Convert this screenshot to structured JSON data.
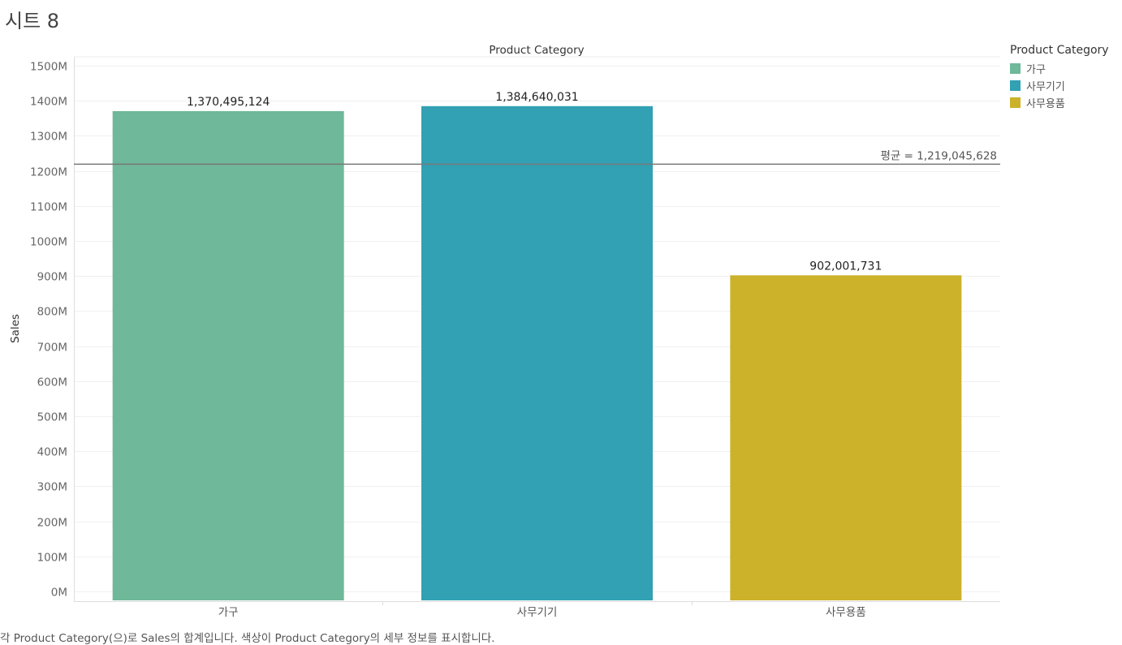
{
  "sheet": {
    "title": "시트 8"
  },
  "caption": "각 Product Category(으)로 Sales의 합계입니다.  색상이 Product Category의 세부 정보를 표시합니다.",
  "legend": {
    "title": "Product Category",
    "items": [
      {
        "label": "가구",
        "color": "#6fb899"
      },
      {
        "label": "사무기기",
        "color": "#31a1b3"
      },
      {
        "label": "사무용품",
        "color": "#ccb22b"
      }
    ]
  },
  "chart_data": {
    "type": "bar",
    "title": "Product Category",
    "xlabel": "",
    "ylabel": "Sales",
    "categories": [
      "가구",
      "사무기기",
      "사무용품"
    ],
    "values": [
      1370495124,
      1384640031,
      902001731
    ],
    "value_labels": [
      "1,370,495,124",
      "1,384,640,031",
      "902,001,731"
    ],
    "colors": [
      "#6fb899",
      "#31a1b3",
      "#ccb22b"
    ],
    "ylim": [
      0,
      1500000000
    ],
    "y_ticks": [
      0,
      100000000,
      200000000,
      300000000,
      400000000,
      500000000,
      600000000,
      700000000,
      800000000,
      900000000,
      1000000000,
      1100000000,
      1200000000,
      1300000000,
      1400000000,
      1500000000
    ],
    "y_tick_labels": [
      "0M",
      "100M",
      "200M",
      "300M",
      "400M",
      "500M",
      "600M",
      "700M",
      "800M",
      "900M",
      "1000M",
      "1100M",
      "1200M",
      "1300M",
      "1400M",
      "1500M"
    ],
    "reference_line": {
      "value": 1219045628,
      "label": "평균 = 1,219,045,628"
    },
    "grid": true,
    "legend_position": "right"
  }
}
